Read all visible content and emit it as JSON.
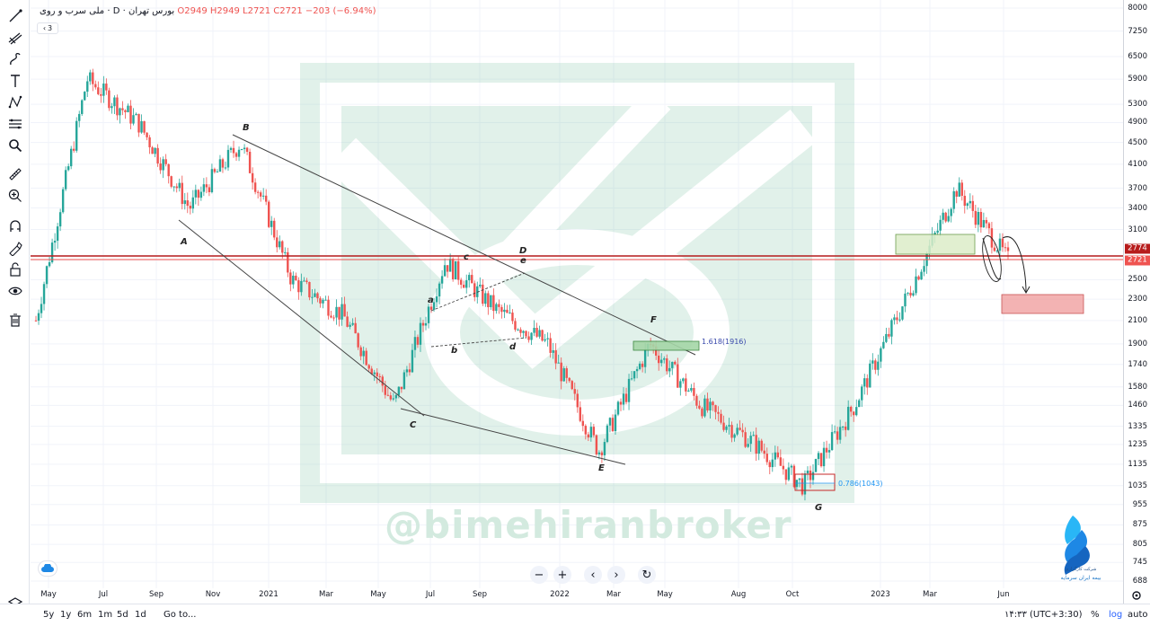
{
  "legend": {
    "symbol": "ملی سرب و روی",
    "interval": "D",
    "exchange": "بورس تهران",
    "open": "O2949",
    "high": "H2949",
    "low": "L2721",
    "close": "C2721",
    "change": "−203 (−6.94%)",
    "indicator_count": "3"
  },
  "price_axis": {
    "ticks": [
      "8000",
      "7250",
      "6500",
      "5900",
      "5300",
      "4900",
      "4500",
      "4100",
      "3700",
      "3400",
      "3100",
      "2774",
      "2721",
      "2500",
      "2300",
      "2100",
      "1900",
      "1740",
      "1580",
      "1460",
      "1335",
      "1235",
      "1135",
      "1035",
      "955",
      "875",
      "805",
      "745",
      "688"
    ],
    "label_prev": "2774",
    "label_last": "2721",
    "label_prev_color": "#b71c1c",
    "label_last_color": "#ef5350"
  },
  "time_axis": {
    "ticks": [
      "May",
      "Jul",
      "Sep",
      "Nov",
      "2021",
      "Mar",
      "May",
      "Jul",
      "Sep",
      "2022",
      "Mar",
      "May",
      "Aug",
      "Oct",
      "2023",
      "Mar",
      "Jun"
    ]
  },
  "bottom_bar": {
    "ranges": [
      "5y",
      "1y",
      "6m",
      "1m",
      "5d",
      "1d"
    ],
    "goto": "Go to...",
    "time": "۱۴:۳۳ (UTC+3:30)",
    "percent": "%",
    "log": "log",
    "auto": "auto"
  },
  "annotations": {
    "points": [
      "A",
      "B",
      "C",
      "D",
      "E",
      "F",
      "G",
      "a",
      "b",
      "c",
      "d",
      "e"
    ],
    "fib_1618": "1.618(1916)",
    "fib_0786": "0.786(1043)"
  },
  "watermark": "@bimehiranbroker",
  "brand": {
    "line1": "شرکت کارگزاری",
    "line2": "بیمه ایران سرمایه"
  },
  "colors": {
    "up": "#26a69a",
    "down": "#ef5350",
    "horizontal_line": "#b71c1c",
    "accent": "#2962ff"
  },
  "chart_data": {
    "type": "candlestick",
    "scale": "log",
    "ylim": [
      688,
      8000
    ],
    "x": [
      "2020-05",
      "2020-07",
      "2020-09",
      "2020-11",
      "2021-01",
      "2021-03",
      "2021-05",
      "2021-07",
      "2021-09",
      "2022-01",
      "2022-03",
      "2022-05",
      "2022-08",
      "2022-10",
      "2023-01",
      "2023-03",
      "2023-06"
    ],
    "close_path": [
      2100,
      5900,
      4900,
      3400,
      4500,
      2500,
      2150,
      1460,
      2700,
      2200,
      1900,
      1200,
      1900,
      1460,
      1250,
      1035,
      1460,
      2300,
      3700,
      2721
    ],
    "last": {
      "open": 2949,
      "high": 2949,
      "low": 2721,
      "close": 2721
    },
    "levels": [
      2774,
      2721
    ],
    "points": {
      "A": 3100,
      "B": 4500,
      "C": 1460,
      "D": 2550,
      "E": 1200,
      "F": 1900,
      "G": 1035
    }
  }
}
